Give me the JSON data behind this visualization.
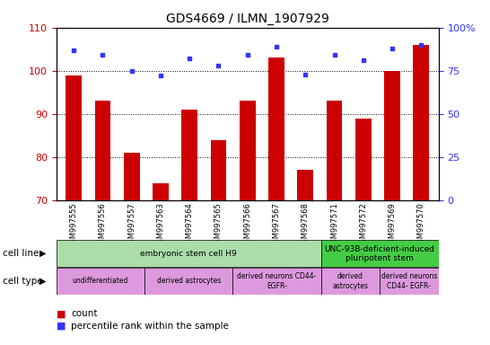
{
  "title": "GDS4669 / ILMN_1907929",
  "samples": [
    "GSM997555",
    "GSM997556",
    "GSM997557",
    "GSM997563",
    "GSM997564",
    "GSM997565",
    "GSM997566",
    "GSM997567",
    "GSM997568",
    "GSM997571",
    "GSM997572",
    "GSM997569",
    "GSM997570"
  ],
  "count_values": [
    99,
    93,
    81,
    74,
    91,
    84,
    93,
    103,
    77,
    93,
    89,
    100,
    106
  ],
  "percentile_values": [
    87,
    84,
    75,
    72,
    82,
    78,
    84,
    89,
    73,
    84,
    81,
    88,
    90
  ],
  "ylim_left": [
    70,
    110
  ],
  "ylim_right": [
    0,
    100
  ],
  "yticks_left": [
    70,
    80,
    90,
    100,
    110
  ],
  "yticks_right": [
    0,
    25,
    50,
    75,
    100
  ],
  "ytick_labels_right": [
    "0",
    "25",
    "50",
    "75",
    "100%"
  ],
  "bar_color": "#cc0000",
  "dot_color": "#3333ff",
  "plot_bg": "#ffffff",
  "xtick_bg": "#cccccc",
  "cell_line_groups": [
    {
      "label": "embryonic stem cell H9",
      "start": 0,
      "end": 9,
      "color": "#aaddaa"
    },
    {
      "label": "UNC-93B-deficient-induced\npluripotent stem",
      "start": 9,
      "end": 13,
      "color": "#44cc44"
    }
  ],
  "cell_type_groups": [
    {
      "label": "undifferentiated",
      "start": 0,
      "end": 3,
      "color": "#dd99dd"
    },
    {
      "label": "derived astrocytes",
      "start": 3,
      "end": 6,
      "color": "#dd99dd"
    },
    {
      "label": "derived neurons CD44-\nEGFR-",
      "start": 6,
      "end": 9,
      "color": "#dd99dd"
    },
    {
      "label": "derived\nastrocytes",
      "start": 9,
      "end": 11,
      "color": "#dd99dd"
    },
    {
      "label": "derived neurons\nCD44- EGFR-",
      "start": 11,
      "end": 13,
      "color": "#dd99dd"
    }
  ],
  "legend_count_color": "#cc0000",
  "legend_pct_color": "#3333ff",
  "ylabel_left_color": "#cc0000",
  "ylabel_right_color": "#3333ff"
}
